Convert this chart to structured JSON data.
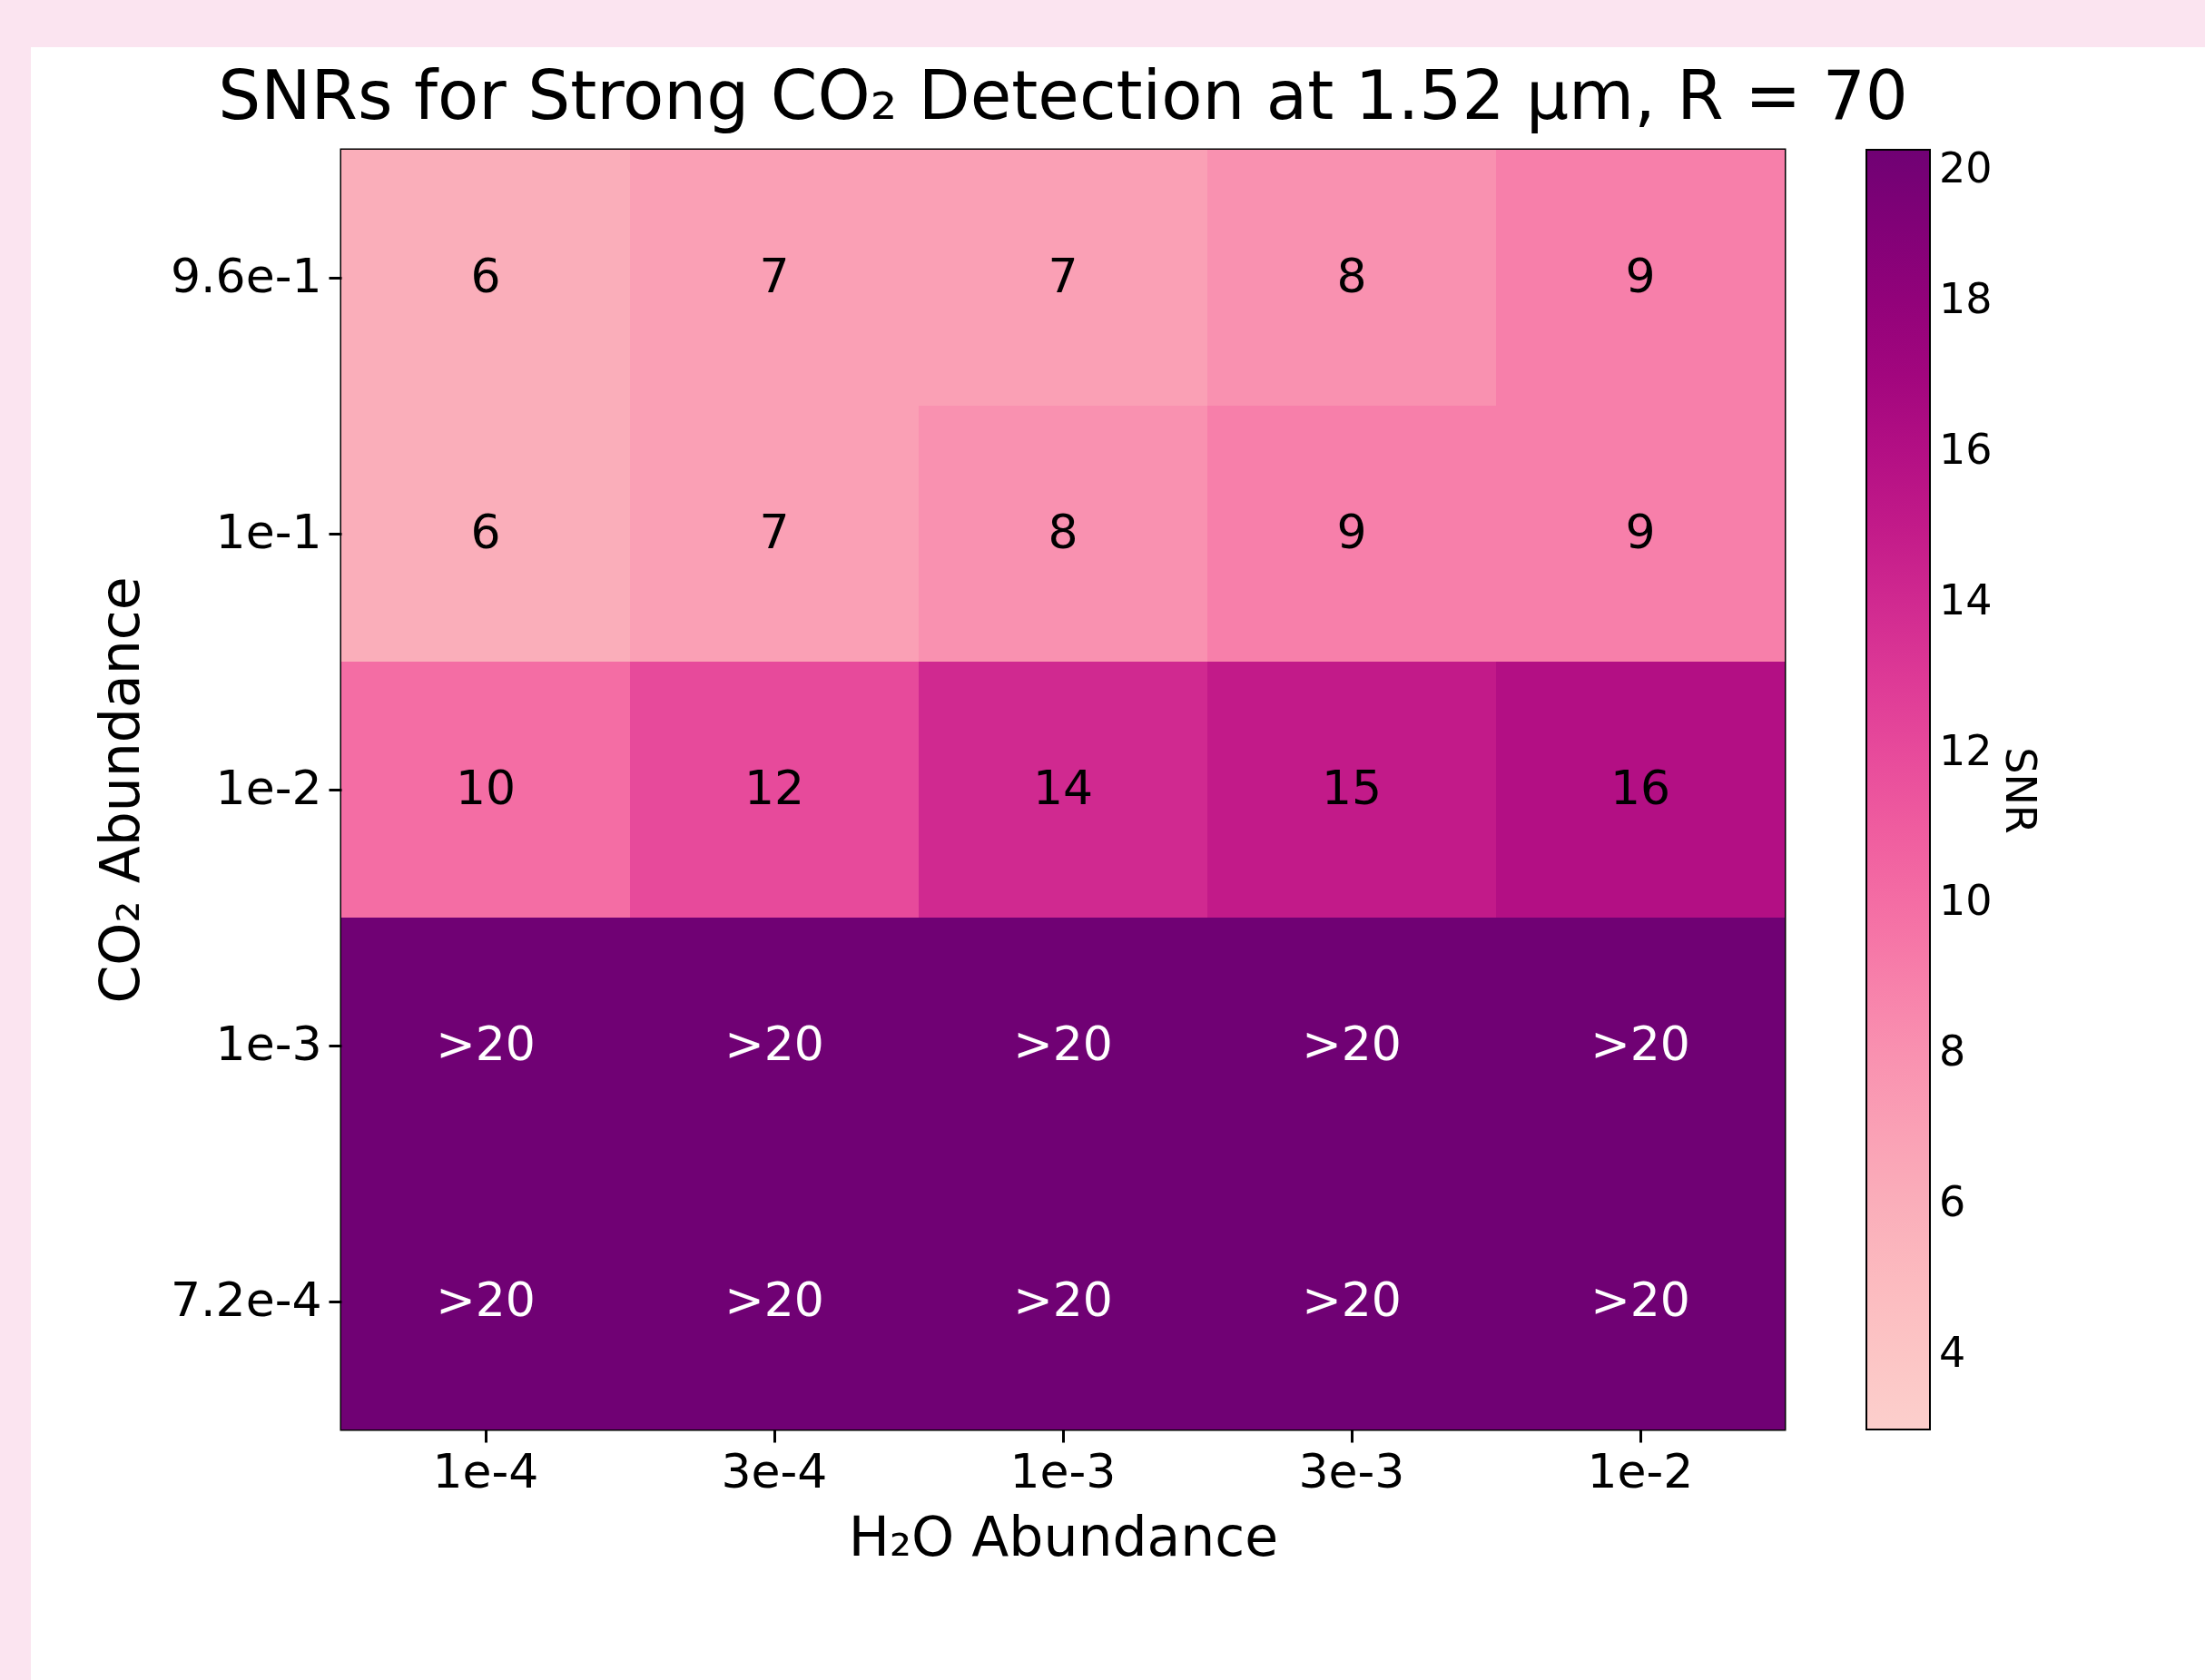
{
  "chart_data": {
    "type": "heatmap",
    "title": "SNRs for Strong CO₂ Detection at 1.52 μm, R = 70",
    "xlabel": "H₂O Abundance",
    "ylabel": "CO₂ Abundance",
    "clabel": "SNR",
    "categories": [
      "1e-4",
      "3e-4",
      "1e-3",
      "3e-3",
      "1e-2"
    ],
    "y_categories": [
      "9.6e-1",
      "1e-1",
      "1e-2",
      "1e-3",
      "7.2e-4"
    ],
    "cells": [
      [
        6,
        7,
        7,
        8,
        9
      ],
      [
        6,
        7,
        8,
        9,
        9
      ],
      [
        10,
        12,
        14,
        15,
        16
      ],
      [
        20,
        20,
        20,
        20,
        20
      ],
      [
        20,
        20,
        20,
        20,
        20
      ]
    ],
    "cell_labels": [
      [
        "6",
        "7",
        "7",
        "8",
        "9"
      ],
      [
        "6",
        "7",
        "8",
        "9",
        "9"
      ],
      [
        "10",
        "12",
        "14",
        "15",
        "16"
      ],
      [
        ">20",
        ">20",
        ">20",
        ">20",
        ">20"
      ],
      [
        ">20",
        ">20",
        ">20",
        ">20",
        ">20"
      ]
    ],
    "clim": [
      3,
      20
    ],
    "cticks": [
      4,
      6,
      8,
      10,
      12,
      14,
      16,
      18,
      20
    ]
  }
}
